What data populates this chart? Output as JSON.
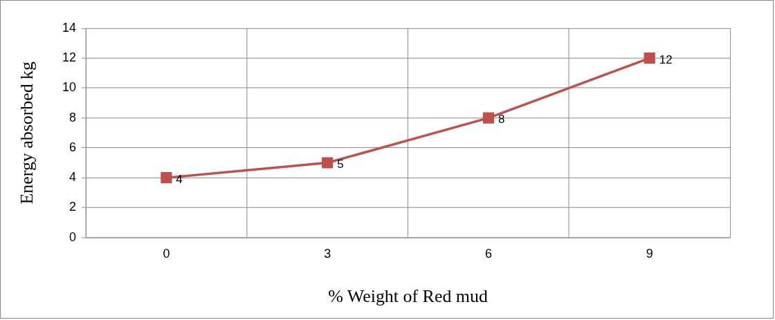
{
  "chart_data": {
    "type": "line",
    "xlabel": "% Weight of Red mud",
    "ylabel": "Energy absorbed kg",
    "categories": [
      "0",
      "3",
      "6",
      "9"
    ],
    "series": [
      {
        "color": "#c0504d",
        "values": [
          4,
          5,
          8,
          12
        ]
      }
    ],
    "ylim": [
      0,
      14
    ],
    "yticks": [
      0,
      2,
      4,
      6,
      8,
      10,
      12,
      14
    ],
    "grid": true,
    "marker": "square",
    "line_style": "solid",
    "data_labels": true,
    "legend": false
  }
}
